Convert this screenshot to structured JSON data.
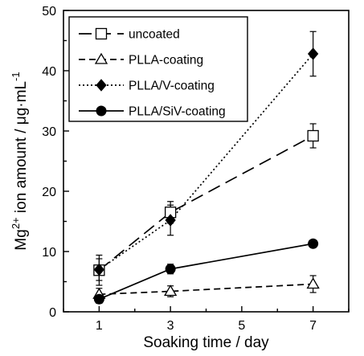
{
  "chart_data": {
    "type": "line",
    "title": "",
    "xlabel": "Soaking time / day",
    "ylabel_parts": {
      "species": "Mg",
      "charge": "2+",
      "rest": " ion amount /  μg·mL",
      "exponent": "-1"
    },
    "xlim": [
      0,
      8
    ],
    "ylim": [
      0,
      50
    ],
    "x_ticks": [
      1,
      3,
      5,
      7
    ],
    "y_ticks": [
      0,
      10,
      20,
      30,
      40,
      50
    ],
    "grid": false,
    "legend_position": "top-left",
    "x": [
      1,
      3,
      7
    ],
    "series": [
      {
        "name": "uncoated",
        "values": [
          6.9,
          16.5,
          29.2
        ],
        "errors": [
          2.5,
          1.8,
          2.0
        ],
        "marker": "open-square",
        "line": "long-dash",
        "color": "#000000"
      },
      {
        "name": "PLLA-coating",
        "values": [
          2.9,
          3.4,
          4.6
        ],
        "errors": [
          1.0,
          0.9,
          1.4
        ],
        "marker": "open-triangle",
        "line": "dash",
        "color": "#000000"
      },
      {
        "name": "PLLA/V-coating",
        "values": [
          7.0,
          15.2,
          42.8
        ],
        "errors": [
          1.8,
          2.5,
          3.7
        ],
        "marker": "filled-diamond",
        "line": "dot",
        "color": "#000000"
      },
      {
        "name": "PLLA/SiV-coating",
        "values": [
          2.1,
          7.1,
          11.3
        ],
        "errors": [
          0.7,
          0.8,
          0.4
        ],
        "marker": "filled-circle",
        "line": "solid",
        "color": "#000000"
      }
    ]
  }
}
